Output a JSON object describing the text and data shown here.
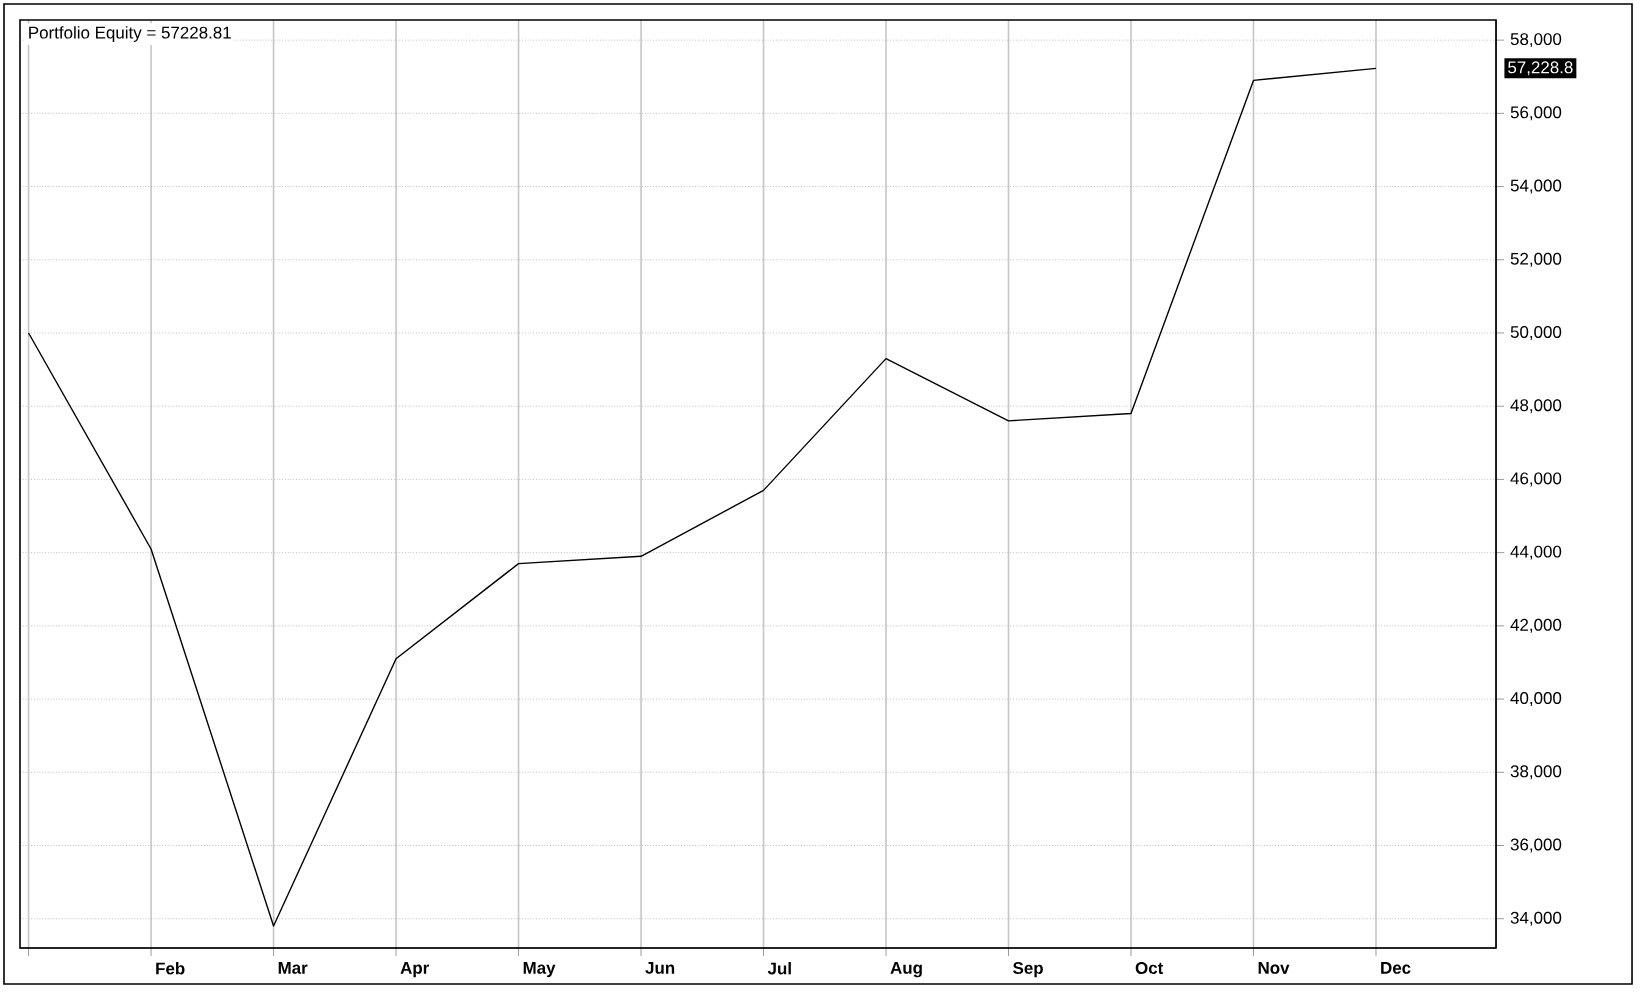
{
  "chart_data": {
    "type": "line",
    "title": "Portfolio Equity = 57228.81",
    "categories": [
      null,
      "Feb",
      "Mar",
      "Apr",
      "May",
      "Jun",
      "Jul",
      "Aug",
      "Sep",
      "Oct",
      "Nov",
      "Dec"
    ],
    "series": [
      {
        "color": "#000000",
        "values": [
          50000,
          44100,
          33800,
          41100,
          43700,
          43900,
          45700,
          49300,
          47600,
          47800,
          56900,
          57228.81
        ]
      }
    ],
    "ylim": [
      33200,
      58550
    ],
    "yticks": [
      {
        "value": 34000,
        "label": "34,000"
      },
      {
        "value": 36000,
        "label": "36,000"
      },
      {
        "value": 38000,
        "label": "38,000"
      },
      {
        "value": 40000,
        "label": "40,000"
      },
      {
        "value": 42000,
        "label": "42,000"
      },
      {
        "value": 44000,
        "label": "44,000"
      },
      {
        "value": 46000,
        "label": "46,000"
      },
      {
        "value": 48000,
        "label": "48,000"
      },
      {
        "value": 50000,
        "label": "50,000"
      },
      {
        "value": 52000,
        "label": "52,000"
      },
      {
        "value": 54000,
        "label": "54,000"
      },
      {
        "value": 56000,
        "label": "56,000"
      },
      {
        "value": 58000,
        "label": "58,000"
      }
    ],
    "annotations": [
      "57,228.8"
    ],
    "grid": true,
    "marker": "none",
    "line_style": "solid"
  }
}
